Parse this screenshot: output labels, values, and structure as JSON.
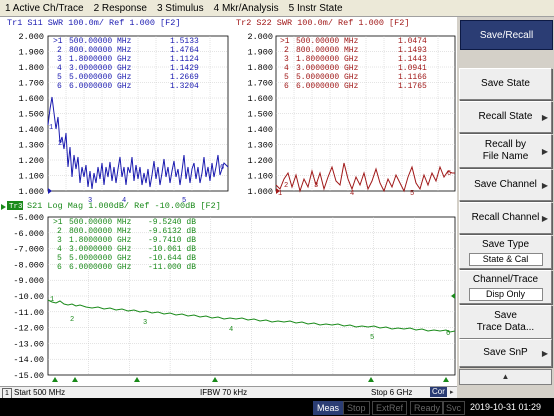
{
  "menu": [
    "1 Active Ch/Trace",
    "2 Response",
    "3 Stimulus",
    "4 Mkr/Analysis",
    "5 Instr State"
  ],
  "colors": {
    "tr1": "#1a1ab0",
    "tr2": "#a01818",
    "tr3": "#1a8a1a"
  },
  "tr1": {
    "header": "Tr1  S11  SWR 100.0m/ Ref 1.000 [F2]",
    "yticks": [
      "2.000",
      "1.900",
      "1.800",
      "1.700",
      "1.600",
      "1.500",
      "1.400",
      "1.300",
      "1.200",
      "1.100",
      "1.000"
    ],
    "markers": [
      {
        "id": ">1",
        "freq": "500.00000 MHz",
        "value": "1.5133"
      },
      {
        "id": "2",
        "freq": "800.00000 MHz",
        "value": "1.4764"
      },
      {
        "id": "3",
        "freq": "1.8000000 GHz",
        "value": "1.1124"
      },
      {
        "id": "4",
        "freq": "3.0000000 GHz",
        "value": "1.1429"
      },
      {
        "id": "5",
        "freq": "5.0000000 GHz",
        "value": "1.2669"
      },
      {
        "id": "6",
        "freq": "6.0000000 GHz",
        "value": "1.3204"
      }
    ]
  },
  "tr2": {
    "header": "Tr2  S22  SWR 100.0m/ Ref 1.000 [F2]",
    "yticks": [
      "2.000",
      "1.900",
      "1.800",
      "1.700",
      "1.600",
      "1.500",
      "1.400",
      "1.300",
      "1.200",
      "1.100",
      "1.000"
    ],
    "markers": [
      {
        "id": ">1",
        "freq": "500.00000 MHz",
        "value": "1.0474"
      },
      {
        "id": "2",
        "freq": "800.00000 MHz",
        "value": "1.1493"
      },
      {
        "id": "3",
        "freq": "1.8000000 GHz",
        "value": "1.1443"
      },
      {
        "id": "4",
        "freq": "3.0000000 GHz",
        "value": "1.0941"
      },
      {
        "id": "5",
        "freq": "5.0000000 GHz",
        "value": "1.1166"
      },
      {
        "id": "6",
        "freq": "6.0000000 GHz",
        "value": "1.1765"
      }
    ]
  },
  "tr3": {
    "label": "Tr3",
    "header": "S21  Log Mag 1.000dB/ Ref -10.00dB [F2]",
    "yticks": [
      "-5.000",
      "-6.000",
      "-7.000",
      "-8.000",
      "-9.000",
      "-10.00",
      "-11.00",
      "-12.00",
      "-13.00",
      "-14.00",
      "-15.00"
    ],
    "markers": [
      {
        "id": ">1",
        "freq": "500.00000 MHz",
        "value": "-9.5240 dB"
      },
      {
        "id": "2",
        "freq": "800.00000 MHz",
        "value": "-9.6132 dB"
      },
      {
        "id": "3",
        "freq": "1.8000000 GHz",
        "value": "-9.7410 dB"
      },
      {
        "id": "4",
        "freq": "3.0000000 GHz",
        "value": "-10.061 dB"
      },
      {
        "id": "5",
        "freq": "5.0000000 GHz",
        "value": "-10.644 dB"
      },
      {
        "id": "6",
        "freq": "6.0000000 GHz",
        "value": "-11.000 dB"
      }
    ]
  },
  "status": {
    "channel": "1",
    "start": "Start 500 MHz",
    "ifbw": "IFBW 70 kHz",
    "stop": "Stop 6 GHz",
    "cor": "Cor"
  },
  "softkeys": {
    "header": "Save/Recall",
    "save_state": "Save State",
    "recall_state": "Recall State",
    "recall_by_1": "Recall by",
    "recall_by_2": "File Name",
    "save_channel": "Save Channel",
    "recall_channel": "Recall Channel",
    "save_type": "Save Type",
    "save_type_value": "State & Cal",
    "channel_trace": "Channel/Trace",
    "channel_trace_value": "Disp Only",
    "save_trace_1": "Save",
    "save_trace_2": "Trace Data...",
    "save_snp": "Save SnP"
  },
  "bottom": {
    "meas": "Meas",
    "stop": "Stop",
    "extref": "ExtRef",
    "ready": "Ready",
    "svc": "Svc",
    "datetime": "2019-10-31 01:29"
  }
}
